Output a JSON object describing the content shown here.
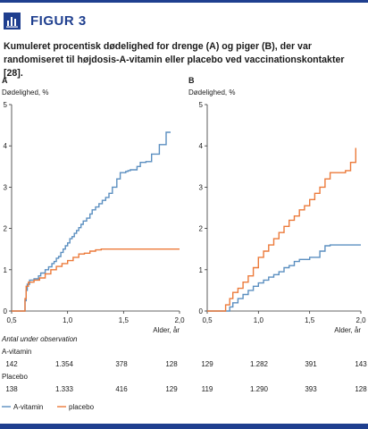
{
  "figure_label": "FIGUR 3",
  "caption": {
    "before_a": "Kumuleret procentisk dødelighed for drenge (",
    "a": "A",
    "middle": ") og piger (",
    "b": "B",
    "after_b": "), der var randomiseret til højdosis-A-vitamin eller placebo ved vaccinationskontakter [28]."
  },
  "at_risk": {
    "title": "Antal under observation",
    "rows": [
      {
        "label": "A-vitamin",
        "a": [
          "142",
          "1.354",
          "378",
          "128"
        ],
        "b": [
          "129",
          "1.282",
          "391",
          "143"
        ]
      },
      {
        "label": "Placebo",
        "a": [
          "138",
          "1.333",
          "416",
          "129"
        ],
        "b": [
          "119",
          "1.290",
          "393",
          "128"
        ]
      }
    ]
  },
  "legend": [
    {
      "label": "A-vitamin",
      "color": "#5b8fc0"
    },
    {
      "label": "placebo",
      "color": "#ec7a3a"
    }
  ],
  "chart_data": [
    {
      "type": "line",
      "panel_label": "A",
      "ylabel": "Dødelighed, %",
      "xlabel": "Alder, år",
      "xlim": [
        0.5,
        2.0
      ],
      "ylim": [
        0,
        5
      ],
      "xticks": [
        {
          "v": 0.5,
          "label": "0,5"
        },
        {
          "v": 1.0,
          "label": "1,0"
        },
        {
          "v": 1.5,
          "label": "1,5"
        },
        {
          "v": 2.0,
          "label": "2,0"
        }
      ],
      "yticks": [
        0,
        1,
        2,
        3,
        4,
        5
      ],
      "series": [
        {
          "name": "A-vitamin",
          "color": "#5b8fc0",
          "x": [
            0.5,
            0.61,
            0.62,
            0.63,
            0.64,
            0.66,
            0.7,
            0.74,
            0.76,
            0.8,
            0.83,
            0.86,
            0.88,
            0.9,
            0.92,
            0.94,
            0.96,
            0.98,
            1.0,
            1.02,
            1.04,
            1.06,
            1.08,
            1.1,
            1.12,
            1.14,
            1.17,
            1.2,
            1.22,
            1.25,
            1.28,
            1.31,
            1.34,
            1.37,
            1.4,
            1.44,
            1.47,
            1.5,
            1.52,
            1.54,
            1.55,
            1.56,
            1.58,
            1.6,
            1.62,
            1.65,
            1.7,
            1.75,
            1.82,
            1.88,
            1.92
          ],
          "y": [
            0,
            0,
            0.25,
            0.5,
            0.65,
            0.75,
            0.78,
            0.85,
            0.92,
            1.0,
            1.07,
            1.15,
            1.2,
            1.28,
            1.32,
            1.42,
            1.5,
            1.58,
            1.65,
            1.75,
            1.8,
            1.88,
            1.95,
            2.02,
            2.1,
            2.18,
            2.25,
            2.35,
            2.45,
            2.52,
            2.6,
            2.68,
            2.75,
            2.85,
            3.0,
            3.2,
            3.35,
            3.35,
            3.38,
            3.4,
            3.4,
            3.42,
            3.42,
            3.42,
            3.5,
            3.6,
            3.62,
            3.8,
            4.03,
            4.33,
            4.33
          ]
        },
        {
          "name": "placebo",
          "color": "#ec7a3a",
          "x": [
            0.5,
            0.61,
            0.62,
            0.63,
            0.65,
            0.7,
            0.75,
            0.8,
            0.85,
            0.9,
            0.95,
            1.0,
            1.05,
            1.1,
            1.15,
            1.2,
            1.25,
            1.3,
            1.4,
            1.5,
            1.6,
            1.7,
            1.8,
            1.9,
            2.0
          ],
          "y": [
            0,
            0,
            0.3,
            0.6,
            0.7,
            0.75,
            0.8,
            0.9,
            1.0,
            1.08,
            1.15,
            1.22,
            1.3,
            1.38,
            1.4,
            1.45,
            1.48,
            1.5,
            1.5,
            1.5,
            1.5,
            1.5,
            1.5,
            1.5,
            1.5
          ]
        }
      ]
    },
    {
      "type": "line",
      "panel_label": "B",
      "ylabel": "Dødelighed, %",
      "xlabel": "Alder, år",
      "xlim": [
        0.5,
        2.0
      ],
      "ylim": [
        0,
        5
      ],
      "xticks": [
        {
          "v": 0.5,
          "label": "0,5"
        },
        {
          "v": 1.0,
          "label": "1,0"
        },
        {
          "v": 1.5,
          "label": "1,5"
        },
        {
          "v": 2.0,
          "label": "2,0"
        }
      ],
      "yticks": [
        0,
        1,
        2,
        3,
        4,
        5
      ],
      "series": [
        {
          "name": "A-vitamin",
          "color": "#5b8fc0",
          "x": [
            0.5,
            0.7,
            0.72,
            0.75,
            0.8,
            0.85,
            0.9,
            0.95,
            1.0,
            1.05,
            1.1,
            1.15,
            1.2,
            1.25,
            1.3,
            1.35,
            1.4,
            1.5,
            1.6,
            1.65,
            1.7,
            1.8,
            1.9,
            2.0
          ],
          "y": [
            0,
            0,
            0.1,
            0.2,
            0.3,
            0.4,
            0.5,
            0.6,
            0.68,
            0.75,
            0.82,
            0.88,
            0.95,
            1.05,
            1.1,
            1.2,
            1.25,
            1.3,
            1.45,
            1.58,
            1.6,
            1.6,
            1.6,
            1.6
          ]
        },
        {
          "name": "placebo",
          "color": "#ec7a3a",
          "x": [
            0.5,
            0.65,
            0.68,
            0.72,
            0.75,
            0.8,
            0.85,
            0.9,
            0.95,
            1.0,
            1.05,
            1.1,
            1.15,
            1.2,
            1.25,
            1.3,
            1.35,
            1.4,
            1.45,
            1.5,
            1.55,
            1.6,
            1.65,
            1.7,
            1.85,
            1.9,
            1.95
          ],
          "y": [
            0,
            0,
            0.15,
            0.3,
            0.45,
            0.55,
            0.7,
            0.85,
            1.05,
            1.3,
            1.45,
            1.6,
            1.75,
            1.9,
            2.05,
            2.2,
            2.3,
            2.45,
            2.55,
            2.7,
            2.85,
            3.0,
            3.2,
            3.35,
            3.4,
            3.6,
            3.95
          ]
        }
      ]
    }
  ]
}
